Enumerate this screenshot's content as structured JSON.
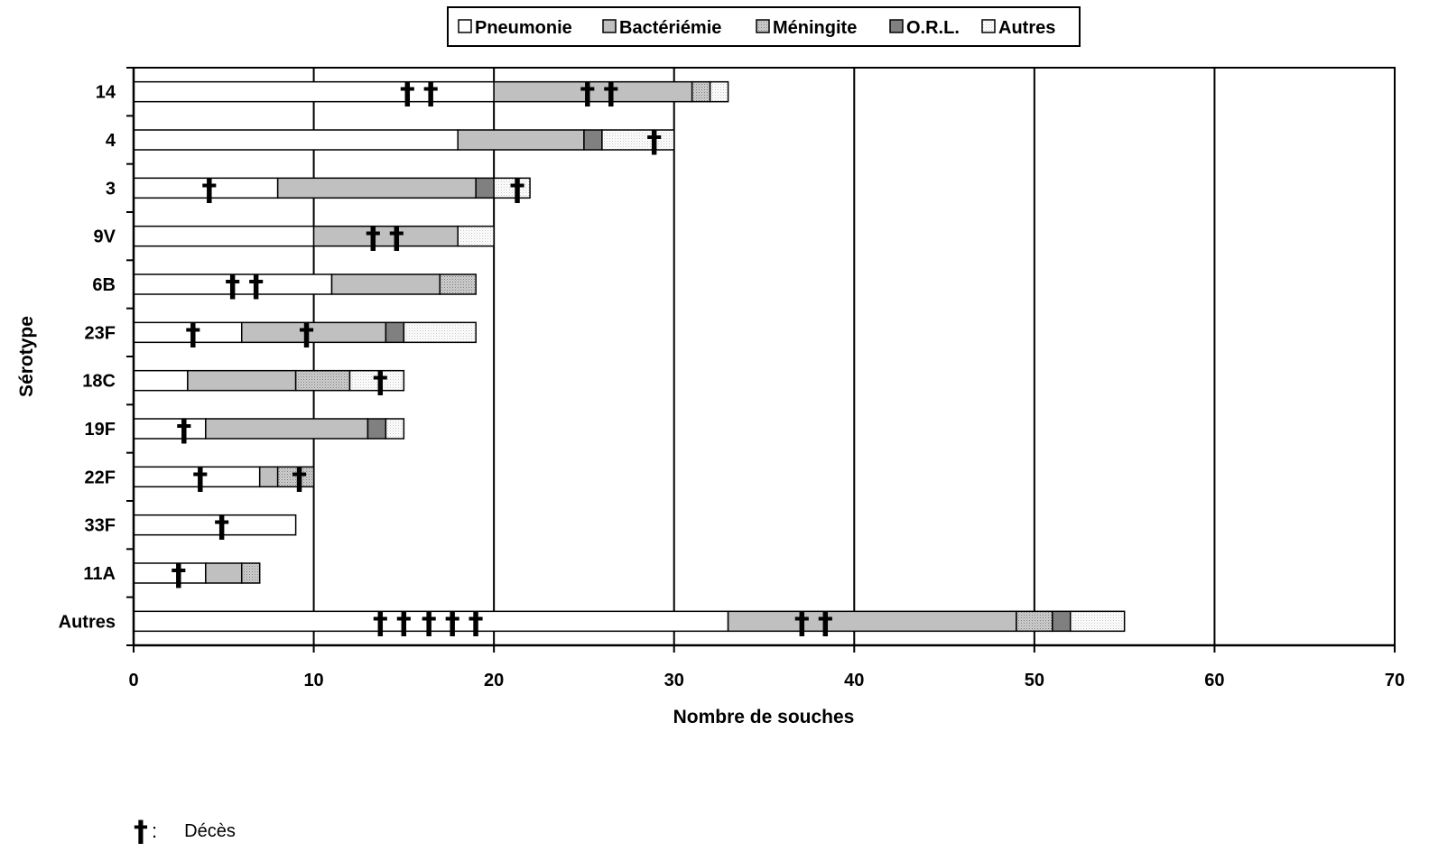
{
  "chart_data": {
    "type": "bar",
    "orientation": "horizontal",
    "stacked": true,
    "title": "",
    "xlabel": "Nombre de souches",
    "ylabel": "Sérotype",
    "xlim": [
      0,
      70
    ],
    "xticks": [
      0,
      10,
      20,
      30,
      40,
      50,
      60,
      70
    ],
    "grid": true,
    "legend_position": "top-center",
    "categories": [
      "14",
      "4",
      "3",
      "9V",
      "6B",
      "23F",
      "18C",
      "19F",
      "22F",
      "33F",
      "11A",
      "Autres"
    ],
    "series": [
      {
        "name": "Pneumonie",
        "color": "#ffffff",
        "pattern": "solid",
        "values": [
          20,
          18,
          8,
          10,
          11,
          6,
          3,
          4,
          7,
          9,
          4,
          33
        ]
      },
      {
        "name": "Bactériémie",
        "color": "#c0c0c0",
        "pattern": "solid",
        "values": [
          11,
          7,
          11,
          8,
          6,
          8,
          6,
          9,
          1,
          0,
          2,
          16
        ]
      },
      {
        "name": "Méningite",
        "color": "#c0c0c0",
        "pattern": "dotted",
        "values": [
          1,
          0,
          0,
          0,
          2,
          0,
          3,
          0,
          2,
          0,
          1,
          2
        ]
      },
      {
        "name": "O.R.L.",
        "color": "#808080",
        "pattern": "solid",
        "values": [
          0,
          1,
          1,
          0,
          0,
          1,
          0,
          1,
          0,
          0,
          0,
          1
        ]
      },
      {
        "name": "Autres",
        "color": "#ffffff",
        "pattern": "dotted",
        "values": [
          1,
          4,
          2,
          2,
          0,
          4,
          3,
          1,
          0,
          0,
          0,
          3
        ]
      }
    ],
    "deaths": {
      "symbol": "†",
      "positions": [
        [
          15.2,
          16.5,
          25.2,
          26.5
        ],
        [
          28.9
        ],
        [
          4.2,
          21.3
        ],
        [
          13.3,
          14.6
        ],
        [
          5.5,
          6.8
        ],
        [
          3.3,
          9.6
        ],
        [
          13.7
        ],
        [
          2.8
        ],
        [
          3.7,
          9.2
        ],
        [
          4.9
        ],
        [
          2.5
        ],
        [
          13.7,
          15.0,
          16.4,
          17.7,
          19.0,
          37.1,
          38.4
        ]
      ]
    }
  },
  "footnote": {
    "symbol": "†",
    "colon": ":",
    "text": "Décès"
  }
}
